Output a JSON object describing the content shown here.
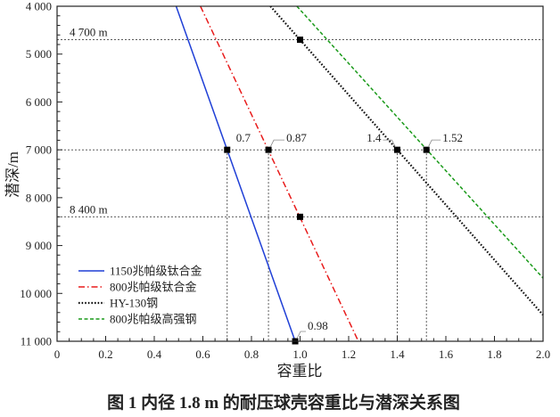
{
  "chart_data": {
    "type": "line",
    "xlabel": "容重比",
    "ylabel": "潜深/m",
    "xlim": [
      0,
      2.0
    ],
    "ylim": [
      4000,
      11000
    ],
    "y_inverted": true,
    "grid": false,
    "legend_position": "bottom-left",
    "x_ticks": [
      "0",
      "0.2",
      "0.4",
      "0.6",
      "0.8",
      "1.0",
      "1.2",
      "1.4",
      "1.6",
      "1.8",
      "2.0"
    ],
    "y_ticks": [
      "4 000",
      "5 000",
      "6 000",
      "7 000",
      "8 000",
      "9 000",
      "10 000",
      "11 000"
    ],
    "series": [
      {
        "name": "1150兆帕级钛合金",
        "color": "#1f3fd6",
        "style": "solid",
        "points": [
          [
            0.49,
            4000
          ],
          [
            0.98,
            11000
          ]
        ]
      },
      {
        "name": "800兆帕级钛合金",
        "color": "#e81c1c",
        "style": "dashdot",
        "points": [
          [
            0.59,
            4000
          ],
          [
            1.24,
            11000
          ]
        ]
      },
      {
        "name": "HY-130钢",
        "color": "#111111",
        "style": "dotted",
        "points": [
          [
            0.878,
            4000
          ],
          [
            2.0,
            10450
          ]
        ]
      },
      {
        "name": "800兆帕级高强钢",
        "color": "#1a9a1a",
        "style": "dashed",
        "points": [
          [
            0.987,
            4000
          ],
          [
            2.0,
            9680
          ]
        ]
      }
    ],
    "reference_lines": [
      {
        "depth": 4700,
        "label": "4 700 m"
      },
      {
        "depth": 7000,
        "label": ""
      },
      {
        "depth": 8400,
        "label": "8 400 m"
      }
    ],
    "vertical_refs": [
      0.7,
      0.87,
      1.4,
      1.52
    ],
    "markers": [
      {
        "x": 0.7,
        "y": 7000,
        "label": "0.7"
      },
      {
        "x": 0.87,
        "y": 7000,
        "label": "0.87"
      },
      {
        "x": 1.4,
        "y": 7000,
        "label": "1.4"
      },
      {
        "x": 1.52,
        "y": 7000,
        "label": "1.52"
      },
      {
        "x": 1.0,
        "y": 4700,
        "label": ""
      },
      {
        "x": 1.0,
        "y": 8400,
        "label": ""
      },
      {
        "x": 0.98,
        "y": 11000,
        "label": "0.98"
      }
    ]
  },
  "caption": "图 1   内径 1.8 m 的耐压球壳容重比与潜深关系图"
}
